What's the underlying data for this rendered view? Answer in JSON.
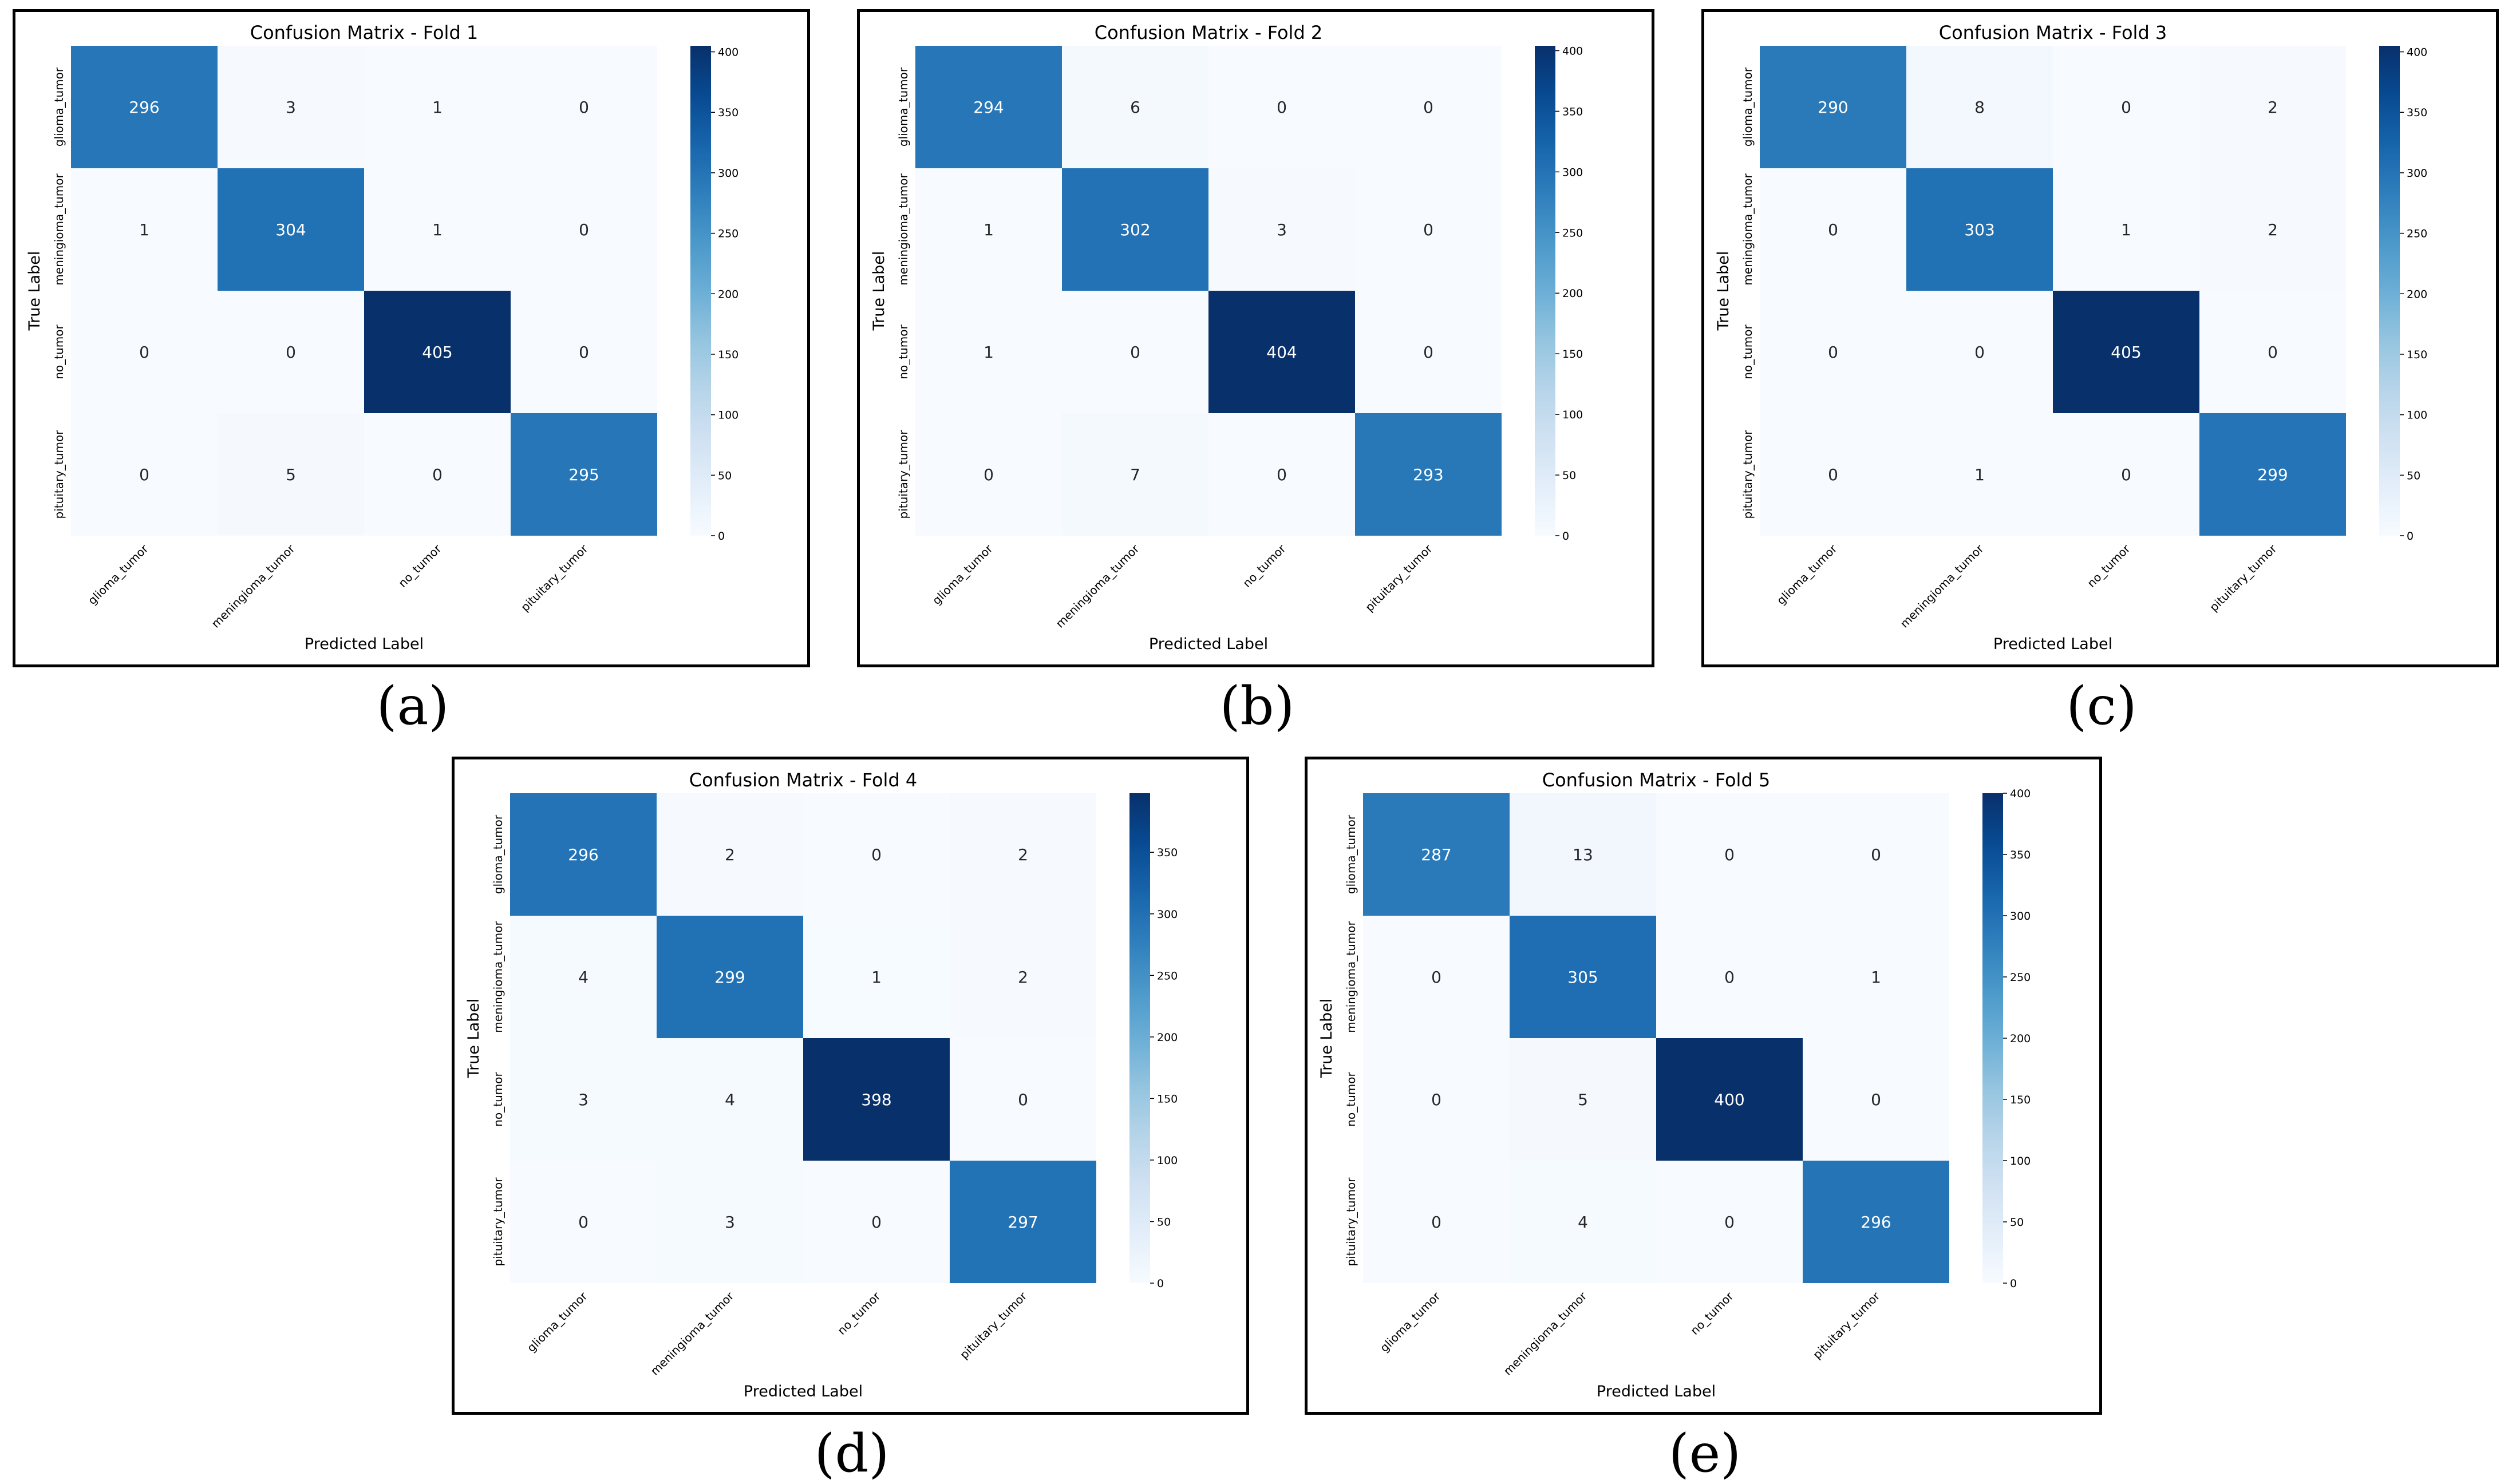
{
  "chart_data": [
    {
      "type": "heatmap",
      "title": "Confusion Matrix - Fold 1",
      "caption": "(a)",
      "xlabel": "Predicted Label",
      "ylabel": "True Label",
      "x_categories": [
        "glioma_tumor",
        "meningioma_tumor",
        "no_tumor",
        "pituitary_tumor"
      ],
      "y_categories": [
        "glioma_tumor",
        "meningioma_tumor",
        "no_tumor",
        "pituitary_tumor"
      ],
      "values": [
        [
          296,
          3,
          1,
          0
        ],
        [
          1,
          304,
          1,
          0
        ],
        [
          0,
          0,
          405,
          0
        ],
        [
          0,
          5,
          0,
          295
        ]
      ],
      "colorbar": {
        "range": [
          0,
          405
        ],
        "ticks": [
          0,
          50,
          100,
          150,
          200,
          250,
          300,
          350,
          400
        ]
      },
      "colormap": "Blues"
    },
    {
      "type": "heatmap",
      "title": "Confusion Matrix - Fold 2",
      "caption": "(b)",
      "xlabel": "Predicted Label",
      "ylabel": "True Label",
      "x_categories": [
        "glioma_tumor",
        "meningioma_tumor",
        "no_tumor",
        "pituitary_tumor"
      ],
      "y_categories": [
        "glioma_tumor",
        "meningioma_tumor",
        "no_tumor",
        "pituitary_tumor"
      ],
      "values": [
        [
          294,
          6,
          0,
          0
        ],
        [
          1,
          302,
          3,
          0
        ],
        [
          1,
          0,
          404,
          0
        ],
        [
          0,
          7,
          0,
          293
        ]
      ],
      "colorbar": {
        "range": [
          0,
          404
        ],
        "ticks": [
          0,
          50,
          100,
          150,
          200,
          250,
          300,
          350,
          400
        ]
      },
      "colormap": "Blues"
    },
    {
      "type": "heatmap",
      "title": "Confusion Matrix - Fold 3",
      "caption": "(c)",
      "xlabel": "Predicted Label",
      "ylabel": "True Label",
      "x_categories": [
        "glioma_tumor",
        "meningioma_tumor",
        "no_tumor",
        "pituitary_tumor"
      ],
      "y_categories": [
        "glioma_tumor",
        "meningioma_tumor",
        "no_tumor",
        "pituitary_tumor"
      ],
      "values": [
        [
          290,
          8,
          0,
          2
        ],
        [
          0,
          303,
          1,
          2
        ],
        [
          0,
          0,
          405,
          0
        ],
        [
          0,
          1,
          0,
          299
        ]
      ],
      "colorbar": {
        "range": [
          0,
          405
        ],
        "ticks": [
          0,
          50,
          100,
          150,
          200,
          250,
          300,
          350,
          400
        ]
      },
      "colormap": "Blues"
    },
    {
      "type": "heatmap",
      "title": "Confusion Matrix - Fold 4",
      "caption": "(d)",
      "xlabel": "Predicted Label",
      "ylabel": "True Label",
      "x_categories": [
        "glioma_tumor",
        "meningioma_tumor",
        "no_tumor",
        "pituitary_tumor"
      ],
      "y_categories": [
        "glioma_tumor",
        "meningioma_tumor",
        "no_tumor",
        "pituitary_tumor"
      ],
      "values": [
        [
          296,
          2,
          0,
          2
        ],
        [
          4,
          299,
          1,
          2
        ],
        [
          3,
          4,
          398,
          0
        ],
        [
          0,
          3,
          0,
          297
        ]
      ],
      "colorbar": {
        "range": [
          0,
          398
        ],
        "ticks": [
          0,
          50,
          100,
          150,
          200,
          250,
          300,
          350
        ]
      },
      "colormap": "Blues"
    },
    {
      "type": "heatmap",
      "title": "Confusion Matrix - Fold 5",
      "caption": "(e)",
      "xlabel": "Predicted Label",
      "ylabel": "True Label",
      "x_categories": [
        "glioma_tumor",
        "meningioma_tumor",
        "no_tumor",
        "pituitary_tumor"
      ],
      "y_categories": [
        "glioma_tumor",
        "meningioma_tumor",
        "no_tumor",
        "pituitary_tumor"
      ],
      "values": [
        [
          287,
          13,
          0,
          0
        ],
        [
          0,
          305,
          0,
          1
        ],
        [
          0,
          5,
          400,
          0
        ],
        [
          0,
          4,
          0,
          296
        ]
      ],
      "colorbar": {
        "range": [
          0,
          400
        ],
        "ticks": [
          0,
          50,
          100,
          150,
          200,
          250,
          300,
          350,
          400
        ]
      },
      "colormap": "Blues"
    }
  ]
}
